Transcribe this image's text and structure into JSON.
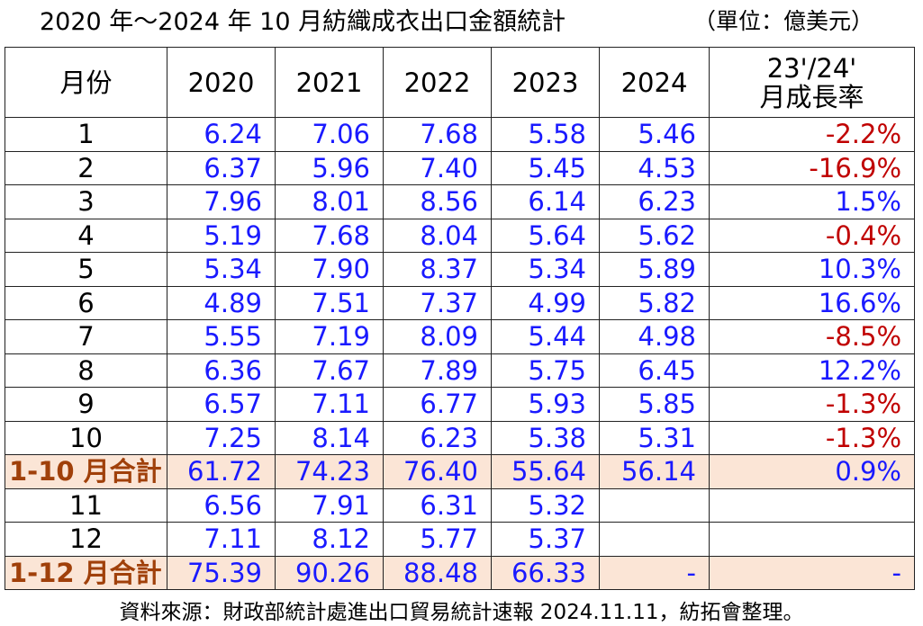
{
  "header": {
    "title": "2020 年～2024 年 10 月紡織成衣出口金額統計",
    "unit": "（單位：億美元）"
  },
  "table": {
    "columns": [
      "月份",
      "2020",
      "2021",
      "2022",
      "2023",
      "2024",
      [
        "23'/24'",
        "月成長率"
      ]
    ],
    "rows": [
      {
        "cells": [
          "1",
          "6.24",
          "7.06",
          "7.68",
          "5.58",
          "5.46",
          "-2.2%"
        ]
      },
      {
        "cells": [
          "2",
          "6.37",
          "5.96",
          "7.40",
          "5.45",
          "4.53",
          "-16.9%"
        ]
      },
      {
        "cells": [
          "3",
          "7.96",
          "8.01",
          "8.56",
          "6.14",
          "6.23",
          "1.5%"
        ]
      },
      {
        "cells": [
          "4",
          "5.19",
          "7.68",
          "8.04",
          "5.64",
          "5.62",
          "-0.4%"
        ]
      },
      {
        "cells": [
          "5",
          "5.34",
          "7.90",
          "8.37",
          "5.34",
          "5.89",
          "10.3%"
        ]
      },
      {
        "cells": [
          "6",
          "4.89",
          "7.51",
          "7.37",
          "4.99",
          "5.82",
          "16.6%"
        ]
      },
      {
        "cells": [
          "7",
          "5.55",
          "7.19",
          "8.09",
          "5.44",
          "4.98",
          "-8.5%"
        ]
      },
      {
        "cells": [
          "8",
          "6.36",
          "7.67",
          "7.89",
          "5.75",
          "6.45",
          "12.2%"
        ]
      },
      {
        "cells": [
          "9",
          "6.57",
          "7.11",
          "6.77",
          "5.93",
          "5.85",
          "-1.3%"
        ]
      },
      {
        "cells": [
          "10",
          "7.25",
          "8.14",
          "6.23",
          "5.38",
          "5.31",
          "-1.3%"
        ]
      },
      {
        "cells": [
          "1-10 月合計",
          "61.72",
          "74.23",
          "76.40",
          "55.64",
          "56.14",
          "0.9%"
        ],
        "highlight": true
      },
      {
        "cells": [
          "11",
          "6.56",
          "7.91",
          "6.31",
          "5.32",
          null,
          null
        ]
      },
      {
        "cells": [
          "12",
          "7.11",
          "8.12",
          "5.77",
          "5.37",
          null,
          null
        ]
      },
      {
        "cells": [
          "1-12 月合計",
          "75.39",
          "90.26",
          "88.48",
          "66.33",
          "-",
          "-"
        ],
        "highlight": true
      }
    ]
  },
  "footer": {
    "source": "資料來源：財政部統計處進出口貿易統計速報 2024.11.11，紡拓會整理。"
  }
}
